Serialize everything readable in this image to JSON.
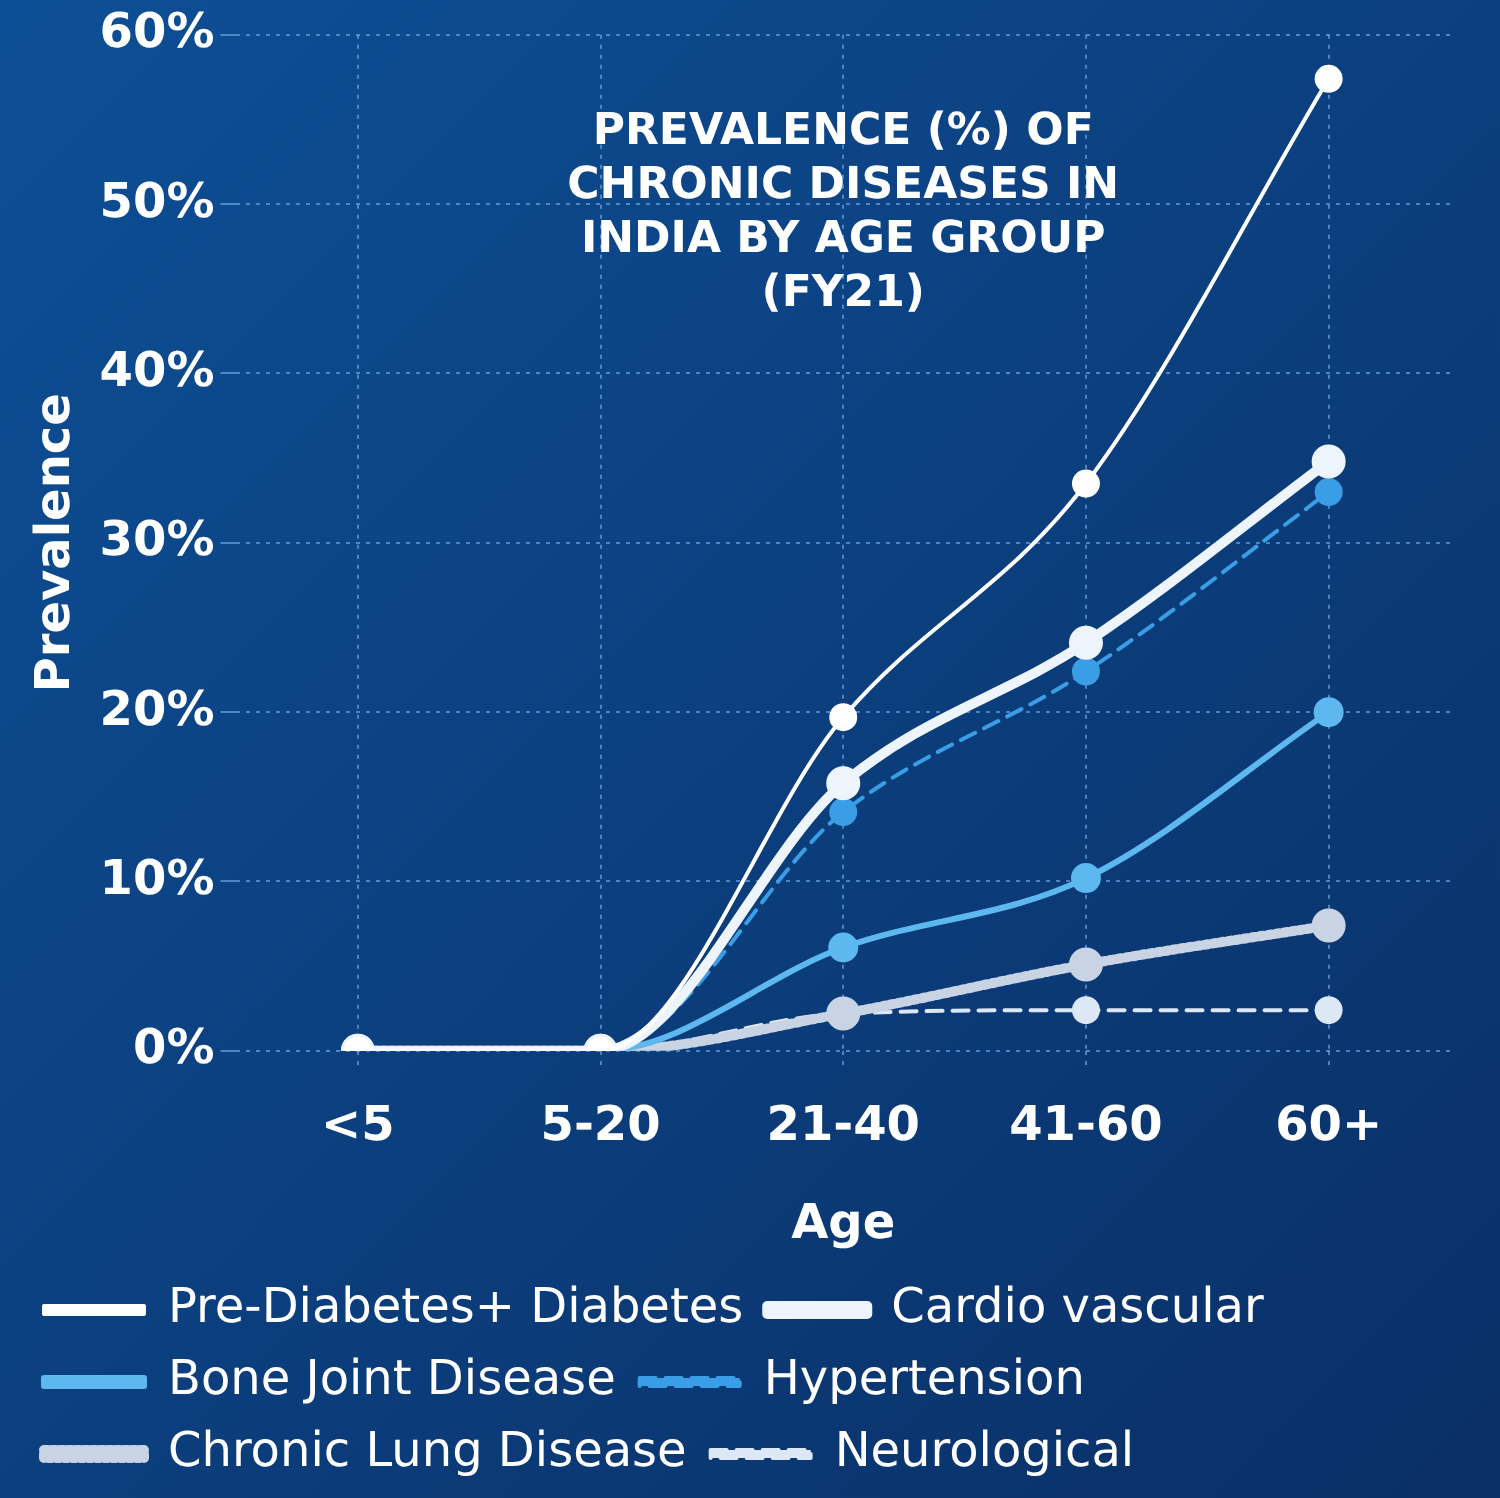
{
  "chart_data": {
    "type": "line",
    "title": "PREVALENCE (%) OF CHRONIC DISEASES IN INDIA BY AGE GROUP (FY21)",
    "xlabel": "Age",
    "ylabel": "Prevalence",
    "categories": [
      "<5",
      "5-20",
      "21-40",
      "41-60",
      "60+"
    ],
    "series": [
      {
        "name": "Pre-Diabetes+ Diabetes",
        "color": "#ffffff",
        "line_style": "solid",
        "values": [
          0,
          0,
          19.7,
          33.5,
          57.4
        ]
      },
      {
        "name": "Cardio vascular",
        "color": "#eef4fc",
        "line_style": "solid",
        "values": [
          0,
          0,
          15.8,
          24.1,
          34.8
        ]
      },
      {
        "name": "Bone Joint Disease",
        "color": "#5cb8ee",
        "line_style": "solid",
        "values": [
          0,
          0,
          6.1,
          10.2,
          20.0
        ]
      },
      {
        "name": "Hypertension",
        "color": "#3a9ee6",
        "line_style": "dashed",
        "values": [
          0,
          0,
          14.1,
          22.4,
          33.0
        ]
      },
      {
        "name": "Chronic Lung Disease",
        "color": "#c8d4e4",
        "line_style": "dotted",
        "values": [
          0,
          0,
          2.2,
          5.1,
          7.4
        ]
      },
      {
        "name": "Neurological",
        "color": "#dde8f6",
        "line_style": "dashed",
        "values": [
          0,
          0,
          2.2,
          2.4,
          2.4
        ]
      }
    ],
    "ylim": [
      0,
      60
    ],
    "yticks": [
      {
        "value": 0,
        "label": "0%"
      },
      {
        "value": 10,
        "label": "10%"
      },
      {
        "value": 20,
        "label": "20%"
      },
      {
        "value": 30,
        "label": "30%"
      },
      {
        "value": 40,
        "label": "40%"
      },
      {
        "value": 50,
        "label": "50%"
      },
      {
        "value": 60,
        "label": "60%"
      }
    ],
    "grid": true,
    "legend": "bottom",
    "marker": "circle"
  }
}
